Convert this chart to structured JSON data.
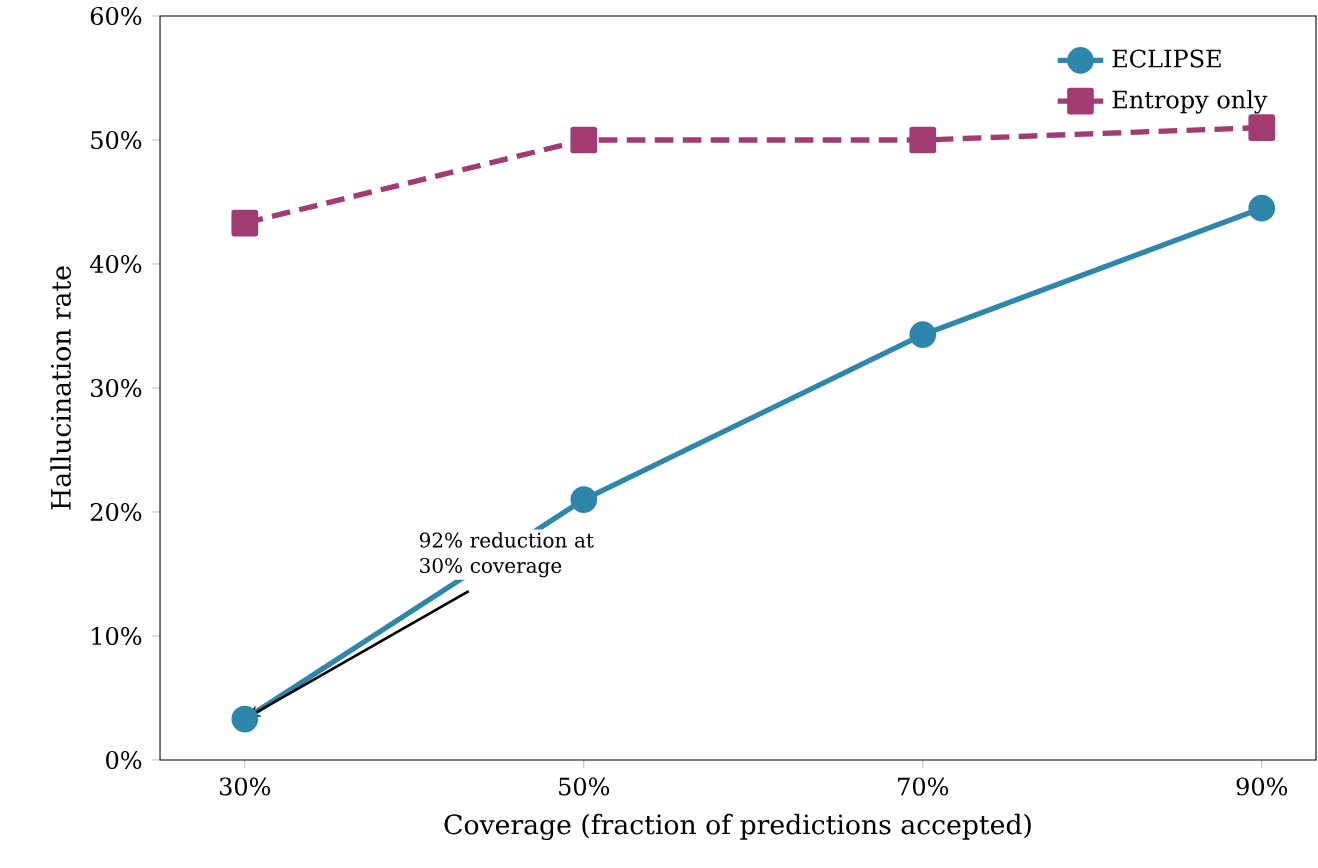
{
  "chart_data": {
    "type": "line",
    "xlabel": "Coverage (fraction of predictions accepted)",
    "ylabel": "Hallucination rate",
    "x": [
      30,
      50,
      70,
      90
    ],
    "series": [
      {
        "name": "ECLIPSE",
        "color": "#2e86ab",
        "values": [
          3.3,
          21,
          34.3,
          44.5
        ],
        "marker": "circle",
        "line_style": "solid"
      },
      {
        "name": "Entropy only",
        "color": "#a23b72",
        "values": [
          43.3,
          50,
          50,
          51
        ],
        "marker": "square",
        "line_style": "dashed"
      }
    ],
    "xlim": [
      25,
      93.2
    ],
    "ylim": [
      0,
      60
    ],
    "xticks": [
      {
        "value": 30,
        "label": "30%"
      },
      {
        "value": 50,
        "label": "50%"
      },
      {
        "value": 70,
        "label": "70%"
      },
      {
        "value": 90,
        "label": "90%"
      }
    ],
    "yticks": [
      {
        "value": 0,
        "label": "0%"
      },
      {
        "value": 10,
        "label": "10%"
      },
      {
        "value": 20,
        "label": "20%"
      },
      {
        "value": 30,
        "label": "30%"
      },
      {
        "value": 40,
        "label": "40%"
      },
      {
        "value": 50,
        "label": "50%"
      },
      {
        "value": 60,
        "label": "60%"
      }
    ],
    "annotations": [
      {
        "text": "92% reduction at 30% coverage",
        "x": 30,
        "y": 3.3
      }
    ],
    "legend": "top right",
    "grid": false
  }
}
